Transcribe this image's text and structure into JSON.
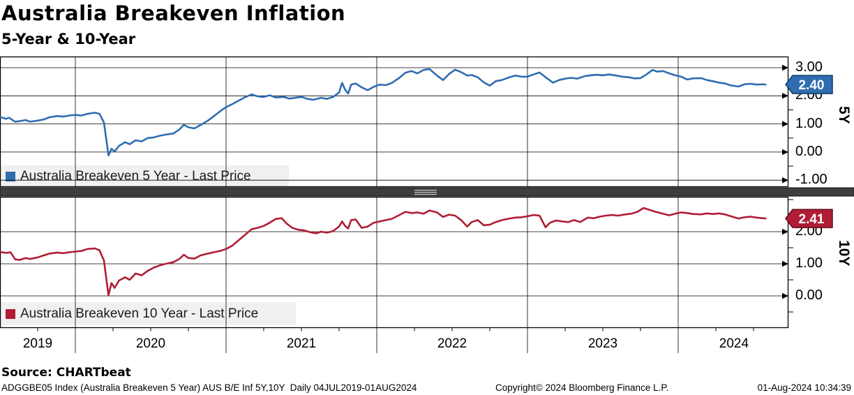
{
  "header": {
    "title": "Australia Breakeven Inflation",
    "subtitle": "5-Year & 10-Year"
  },
  "footer": {
    "source": "Source: CHARTbeat",
    "description": "ADGGBE05 Index (Australia Breakeven 5 Year) AUS B/E Inf 5Y,10Y  Daily 04JUL2019-01AUG2024",
    "copyright": "Copyright© 2024 Bloomberg Finance L.P.",
    "timestamp": "01-Aug-2024 10:34:39"
  },
  "colors": {
    "blue": "#2f6db0",
    "blue_border": "#123a66",
    "red": "#b01d35",
    "red_border": "#5f0e1c",
    "grid": "#000000",
    "legend_bg": "#efefef",
    "divider": "#3e3e3e"
  },
  "chart_data": {
    "type": "line",
    "title": "Australia Breakeven Inflation",
    "subtitle": "5-Year & 10-Year",
    "grid": "on",
    "x_axis": {
      "lim": [
        2019.5,
        2024.73
      ],
      "gridline_years": [
        2020,
        2021,
        2022,
        2023,
        2024
      ],
      "labels": [
        {
          "text": "2019",
          "x": 2019.75
        },
        {
          "text": "2020",
          "x": 2020.5
        },
        {
          "text": "2021",
          "x": 2021.5
        },
        {
          "text": "2022",
          "x": 2022.5
        },
        {
          "text": "2023",
          "x": 2023.5
        },
        {
          "text": "2024",
          "x": 2024.37
        }
      ]
    },
    "panels": [
      {
        "name": "5Y",
        "legend": "Australia Breakeven 5 Year - Last Price",
        "color": "#2f6db0",
        "tag_border": "#123a66",
        "last_price": "2.40",
        "last_value": 2.4,
        "ylim": [
          -1.24,
          3.4
        ],
        "y_ticks": [
          {
            "v": 3,
            "label": "3.00"
          },
          {
            "v": 2,
            "label": "2.00"
          },
          {
            "v": 1,
            "label": "1.00"
          },
          {
            "v": 0,
            "label": "0.00"
          },
          {
            "v": -1,
            "label": "-1.00"
          }
        ],
        "series": [
          [
            2019.5,
            1.25
          ],
          [
            2019.54,
            1.18
          ],
          [
            2019.56,
            1.22
          ],
          [
            2019.6,
            1.08
          ],
          [
            2019.63,
            1.1
          ],
          [
            2019.67,
            1.14
          ],
          [
            2019.7,
            1.08
          ],
          [
            2019.75,
            1.12
          ],
          [
            2019.79,
            1.16
          ],
          [
            2019.83,
            1.24
          ],
          [
            2019.88,
            1.28
          ],
          [
            2019.92,
            1.26
          ],
          [
            2019.96,
            1.3
          ],
          [
            2020.0,
            1.32
          ],
          [
            2020.04,
            1.3
          ],
          [
            2020.08,
            1.36
          ],
          [
            2020.13,
            1.4
          ],
          [
            2020.16,
            1.36
          ],
          [
            2020.19,
            1.05
          ],
          [
            2020.22,
            -0.12
          ],
          [
            2020.24,
            0.12
          ],
          [
            2020.26,
            0.02
          ],
          [
            2020.29,
            0.22
          ],
          [
            2020.33,
            0.35
          ],
          [
            2020.36,
            0.28
          ],
          [
            2020.4,
            0.42
          ],
          [
            2020.44,
            0.38
          ],
          [
            2020.48,
            0.5
          ],
          [
            2020.52,
            0.52
          ],
          [
            2020.56,
            0.58
          ],
          [
            2020.6,
            0.62
          ],
          [
            2020.65,
            0.66
          ],
          [
            2020.69,
            0.8
          ],
          [
            2020.72,
            0.97
          ],
          [
            2020.75,
            0.88
          ],
          [
            2020.79,
            0.84
          ],
          [
            2020.83,
            0.96
          ],
          [
            2020.88,
            1.12
          ],
          [
            2020.92,
            1.28
          ],
          [
            2020.96,
            1.45
          ],
          [
            2021.0,
            1.6
          ],
          [
            2021.04,
            1.7
          ],
          [
            2021.08,
            1.82
          ],
          [
            2021.13,
            1.96
          ],
          [
            2021.17,
            2.05
          ],
          [
            2021.21,
            1.98
          ],
          [
            2021.25,
            1.96
          ],
          [
            2021.29,
            2.02
          ],
          [
            2021.33,
            1.94
          ],
          [
            2021.38,
            1.96
          ],
          [
            2021.42,
            1.9
          ],
          [
            2021.46,
            1.93
          ],
          [
            2021.5,
            1.96
          ],
          [
            2021.54,
            1.89
          ],
          [
            2021.58,
            1.86
          ],
          [
            2021.63,
            1.93
          ],
          [
            2021.67,
            1.89
          ],
          [
            2021.71,
            1.96
          ],
          [
            2021.75,
            2.12
          ],
          [
            2021.77,
            2.46
          ],
          [
            2021.79,
            2.22
          ],
          [
            2021.81,
            2.08
          ],
          [
            2021.83,
            2.4
          ],
          [
            2021.86,
            2.44
          ],
          [
            2021.9,
            2.3
          ],
          [
            2021.94,
            2.2
          ],
          [
            2021.98,
            2.32
          ],
          [
            2022.02,
            2.4
          ],
          [
            2022.06,
            2.38
          ],
          [
            2022.1,
            2.46
          ],
          [
            2022.15,
            2.64
          ],
          [
            2022.19,
            2.82
          ],
          [
            2022.23,
            2.88
          ],
          [
            2022.27,
            2.8
          ],
          [
            2022.31,
            2.92
          ],
          [
            2022.35,
            2.95
          ],
          [
            2022.4,
            2.72
          ],
          [
            2022.44,
            2.56
          ],
          [
            2022.48,
            2.78
          ],
          [
            2022.52,
            2.93
          ],
          [
            2022.56,
            2.84
          ],
          [
            2022.6,
            2.72
          ],
          [
            2022.63,
            2.74
          ],
          [
            2022.67,
            2.66
          ],
          [
            2022.71,
            2.48
          ],
          [
            2022.75,
            2.36
          ],
          [
            2022.79,
            2.52
          ],
          [
            2022.83,
            2.56
          ],
          [
            2022.88,
            2.66
          ],
          [
            2022.92,
            2.72
          ],
          [
            2022.96,
            2.68
          ],
          [
            2023.0,
            2.68
          ],
          [
            2023.04,
            2.76
          ],
          [
            2023.08,
            2.83
          ],
          [
            2023.13,
            2.62
          ],
          [
            2023.17,
            2.47
          ],
          [
            2023.21,
            2.56
          ],
          [
            2023.25,
            2.61
          ],
          [
            2023.29,
            2.64
          ],
          [
            2023.33,
            2.61
          ],
          [
            2023.38,
            2.7
          ],
          [
            2023.42,
            2.73
          ],
          [
            2023.46,
            2.75
          ],
          [
            2023.5,
            2.73
          ],
          [
            2023.54,
            2.76
          ],
          [
            2023.58,
            2.73
          ],
          [
            2023.63,
            2.68
          ],
          [
            2023.67,
            2.66
          ],
          [
            2023.71,
            2.62
          ],
          [
            2023.75,
            2.63
          ],
          [
            2023.79,
            2.76
          ],
          [
            2023.83,
            2.92
          ],
          [
            2023.86,
            2.86
          ],
          [
            2023.9,
            2.88
          ],
          [
            2023.94,
            2.8
          ],
          [
            2023.98,
            2.73
          ],
          [
            2024.02,
            2.68
          ],
          [
            2024.06,
            2.58
          ],
          [
            2024.1,
            2.62
          ],
          [
            2024.15,
            2.63
          ],
          [
            2024.19,
            2.56
          ],
          [
            2024.23,
            2.52
          ],
          [
            2024.27,
            2.47
          ],
          [
            2024.31,
            2.44
          ],
          [
            2024.35,
            2.37
          ],
          [
            2024.4,
            2.33
          ],
          [
            2024.44,
            2.41
          ],
          [
            2024.48,
            2.43
          ],
          [
            2024.52,
            2.4
          ],
          [
            2024.56,
            2.41
          ],
          [
            2024.58,
            2.4
          ]
        ]
      },
      {
        "name": "10Y",
        "legend": "Australia Breakeven 10 Year - Last Price",
        "color": "#b01d35",
        "tag_border": "#5f0e1c",
        "last_price": "2.41",
        "last_value": 2.41,
        "ylim": [
          -1.0,
          3.09
        ],
        "y_ticks": [
          {
            "v": 2,
            "label": "2.00"
          },
          {
            "v": 1,
            "label": "1.00"
          },
          {
            "v": 0,
            "label": "0.00"
          }
        ],
        "series": [
          [
            2019.5,
            1.37
          ],
          [
            2019.54,
            1.34
          ],
          [
            2019.57,
            1.36
          ],
          [
            2019.6,
            1.14
          ],
          [
            2019.63,
            1.12
          ],
          [
            2019.67,
            1.18
          ],
          [
            2019.7,
            1.15
          ],
          [
            2019.75,
            1.2
          ],
          [
            2019.79,
            1.26
          ],
          [
            2019.83,
            1.32
          ],
          [
            2019.88,
            1.35
          ],
          [
            2019.92,
            1.33
          ],
          [
            2019.96,
            1.36
          ],
          [
            2020.0,
            1.38
          ],
          [
            2020.04,
            1.4
          ],
          [
            2020.08,
            1.46
          ],
          [
            2020.13,
            1.48
          ],
          [
            2020.16,
            1.42
          ],
          [
            2020.19,
            1.1
          ],
          [
            2020.22,
            0.02
          ],
          [
            2020.24,
            0.4
          ],
          [
            2020.26,
            0.25
          ],
          [
            2020.29,
            0.48
          ],
          [
            2020.33,
            0.58
          ],
          [
            2020.36,
            0.5
          ],
          [
            2020.4,
            0.7
          ],
          [
            2020.44,
            0.64
          ],
          [
            2020.48,
            0.78
          ],
          [
            2020.52,
            0.88
          ],
          [
            2020.56,
            0.95
          ],
          [
            2020.6,
            1.0
          ],
          [
            2020.65,
            1.05
          ],
          [
            2020.69,
            1.15
          ],
          [
            2020.72,
            1.28
          ],
          [
            2020.75,
            1.18
          ],
          [
            2020.79,
            1.16
          ],
          [
            2020.83,
            1.26
          ],
          [
            2020.88,
            1.32
          ],
          [
            2020.92,
            1.36
          ],
          [
            2020.96,
            1.4
          ],
          [
            2021.0,
            1.46
          ],
          [
            2021.04,
            1.56
          ],
          [
            2021.08,
            1.72
          ],
          [
            2021.13,
            1.92
          ],
          [
            2021.17,
            2.08
          ],
          [
            2021.21,
            2.12
          ],
          [
            2021.25,
            2.18
          ],
          [
            2021.29,
            2.28
          ],
          [
            2021.33,
            2.4
          ],
          [
            2021.37,
            2.42
          ],
          [
            2021.4,
            2.26
          ],
          [
            2021.44,
            2.12
          ],
          [
            2021.48,
            2.06
          ],
          [
            2021.52,
            2.04
          ],
          [
            2021.56,
            1.98
          ],
          [
            2021.6,
            1.95
          ],
          [
            2021.63,
            2.0
          ],
          [
            2021.67,
            1.97
          ],
          [
            2021.71,
            2.02
          ],
          [
            2021.75,
            2.16
          ],
          [
            2021.77,
            2.32
          ],
          [
            2021.79,
            2.18
          ],
          [
            2021.81,
            2.1
          ],
          [
            2021.83,
            2.36
          ],
          [
            2021.86,
            2.38
          ],
          [
            2021.9,
            2.12
          ],
          [
            2021.94,
            2.16
          ],
          [
            2021.98,
            2.28
          ],
          [
            2022.02,
            2.32
          ],
          [
            2022.06,
            2.36
          ],
          [
            2022.1,
            2.4
          ],
          [
            2022.15,
            2.52
          ],
          [
            2022.19,
            2.62
          ],
          [
            2022.23,
            2.58
          ],
          [
            2022.27,
            2.6
          ],
          [
            2022.31,
            2.56
          ],
          [
            2022.35,
            2.66
          ],
          [
            2022.4,
            2.6
          ],
          [
            2022.44,
            2.46
          ],
          [
            2022.48,
            2.53
          ],
          [
            2022.52,
            2.5
          ],
          [
            2022.56,
            2.36
          ],
          [
            2022.6,
            2.16
          ],
          [
            2022.63,
            2.3
          ],
          [
            2022.67,
            2.36
          ],
          [
            2022.71,
            2.2
          ],
          [
            2022.75,
            2.22
          ],
          [
            2022.79,
            2.3
          ],
          [
            2022.83,
            2.36
          ],
          [
            2022.88,
            2.41
          ],
          [
            2022.92,
            2.44
          ],
          [
            2022.96,
            2.45
          ],
          [
            2023.0,
            2.48
          ],
          [
            2023.04,
            2.52
          ],
          [
            2023.08,
            2.5
          ],
          [
            2023.12,
            2.14
          ],
          [
            2023.15,
            2.28
          ],
          [
            2023.19,
            2.35
          ],
          [
            2023.23,
            2.32
          ],
          [
            2023.27,
            2.3
          ],
          [
            2023.31,
            2.36
          ],
          [
            2023.35,
            2.3
          ],
          [
            2023.4,
            2.44
          ],
          [
            2023.44,
            2.42
          ],
          [
            2023.48,
            2.47
          ],
          [
            2023.52,
            2.5
          ],
          [
            2023.56,
            2.52
          ],
          [
            2023.6,
            2.5
          ],
          [
            2023.65,
            2.54
          ],
          [
            2023.69,
            2.56
          ],
          [
            2023.73,
            2.62
          ],
          [
            2023.77,
            2.74
          ],
          [
            2023.81,
            2.68
          ],
          [
            2023.85,
            2.62
          ],
          [
            2023.9,
            2.56
          ],
          [
            2023.94,
            2.51
          ],
          [
            2023.98,
            2.56
          ],
          [
            2024.02,
            2.6
          ],
          [
            2024.06,
            2.58
          ],
          [
            2024.1,
            2.55
          ],
          [
            2024.15,
            2.54
          ],
          [
            2024.19,
            2.57
          ],
          [
            2024.23,
            2.55
          ],
          [
            2024.27,
            2.57
          ],
          [
            2024.31,
            2.54
          ],
          [
            2024.35,
            2.48
          ],
          [
            2024.4,
            2.41
          ],
          [
            2024.44,
            2.45
          ],
          [
            2024.48,
            2.47
          ],
          [
            2024.52,
            2.44
          ],
          [
            2024.56,
            2.42
          ],
          [
            2024.58,
            2.41
          ]
        ]
      }
    ]
  }
}
